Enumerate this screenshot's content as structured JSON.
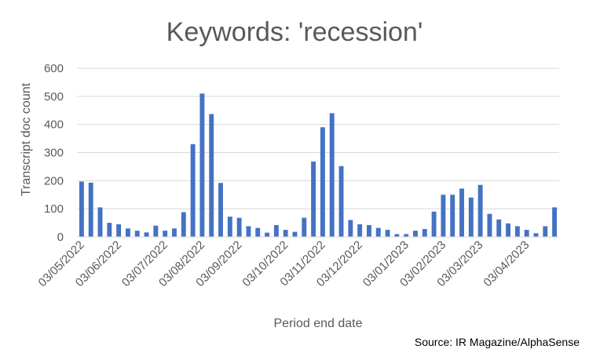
{
  "chart_data": {
    "type": "bar",
    "title": "Keywords: 'recession'",
    "xlabel": "Period end date",
    "ylabel": "Transcript doc count",
    "ylim": [
      0,
      600
    ],
    "yticks": [
      0,
      100,
      200,
      300,
      400,
      500,
      600
    ],
    "grid": true,
    "legend": "none",
    "bar_color": "#4472c4",
    "x_tick_labels": [
      "03/05/2022",
      "03/06/2022",
      "03/07/2022",
      "03/08/2022",
      "03/09/2022",
      "03/10/2022",
      "03/11/2022",
      "03/12/2022",
      "03/01/2023",
      "03/02/2023",
      "03/03/2023",
      "03/04/2023"
    ],
    "x_tick_positions": [
      0,
      4,
      9,
      13,
      17,
      22,
      26,
      30,
      35,
      39,
      43,
      48
    ],
    "values": [
      197,
      193,
      105,
      50,
      45,
      30,
      22,
      16,
      40,
      22,
      30,
      88,
      330,
      510,
      437,
      192,
      72,
      68,
      38,
      32,
      15,
      42,
      25,
      18,
      68,
      268,
      390,
      440,
      252,
      60,
      45,
      42,
      32,
      25,
      10,
      10,
      22,
      28,
      90,
      150,
      150,
      172,
      140,
      185,
      82,
      62,
      48,
      38,
      25,
      13,
      38,
      105
    ]
  },
  "source": "Source: IR Magazine/AlphaSense"
}
